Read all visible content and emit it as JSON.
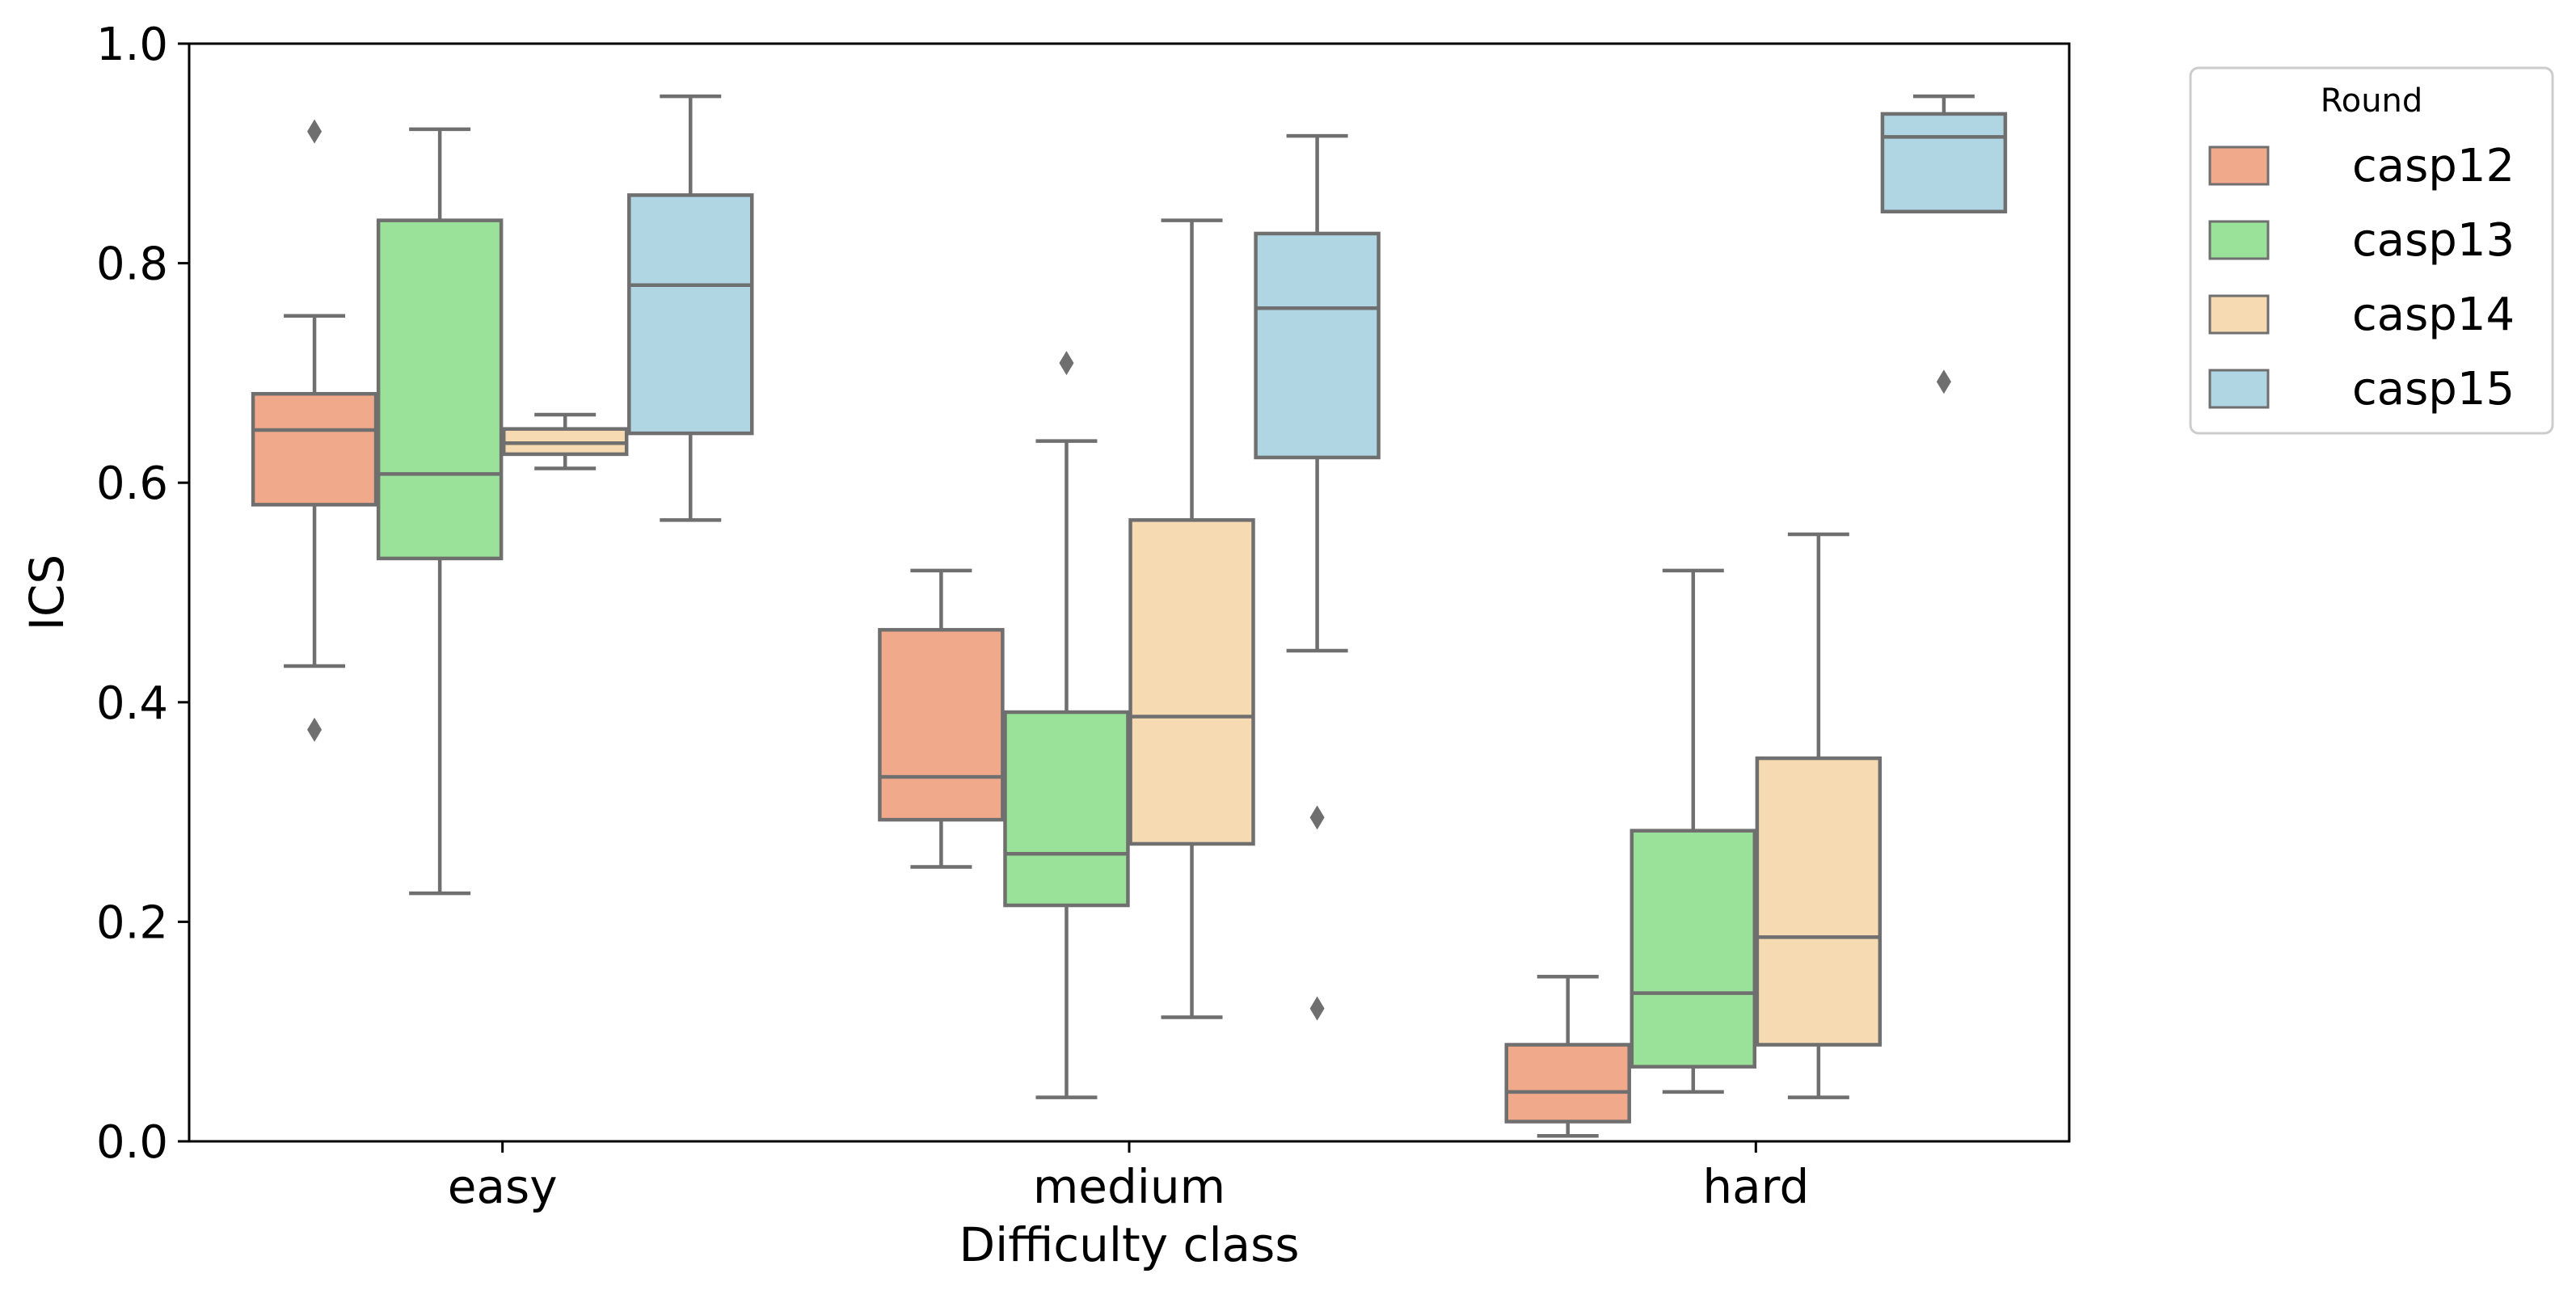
{
  "chart_data": {
    "type": "box",
    "xlabel": "Difficulty class",
    "ylabel": "ICS",
    "ylim": [
      0,
      1
    ],
    "yticks": [
      "0.0",
      "0.2",
      "0.4",
      "0.6",
      "0.8",
      "1.0"
    ],
    "categories": [
      "easy",
      "medium",
      "hard"
    ],
    "legend": {
      "title": "Round",
      "placement": "outside right, top"
    },
    "grid": false,
    "series": [
      {
        "name": "casp12",
        "color": "#F0A98A",
        "boxes": [
          {
            "whislo": 0.433,
            "q1": 0.58,
            "med": 0.648,
            "q3": 0.681,
            "whishi": 0.752,
            "fliers": [
              0.92,
              0.375
            ]
          },
          {
            "whislo": 0.25,
            "q1": 0.293,
            "med": 0.332,
            "q3": 0.466,
            "whishi": 0.52,
            "fliers": []
          },
          {
            "whislo": 0.005,
            "q1": 0.018,
            "med": 0.045,
            "q3": 0.088,
            "whishi": 0.15,
            "fliers": []
          }
        ]
      },
      {
        "name": "casp13",
        "color": "#9AE29A",
        "boxes": [
          {
            "whislo": 0.226,
            "q1": 0.531,
            "med": 0.608,
            "q3": 0.839,
            "whishi": 0.922,
            "fliers": []
          },
          {
            "whislo": 0.04,
            "q1": 0.215,
            "med": 0.262,
            "q3": 0.391,
            "whishi": 0.638,
            "fliers": [
              0.709
            ]
          },
          {
            "whislo": 0.045,
            "q1": 0.068,
            "med": 0.135,
            "q3": 0.283,
            "whishi": 0.52,
            "fliers": []
          }
        ]
      },
      {
        "name": "casp14",
        "color": "#F5DAB2",
        "boxes": [
          {
            "whislo": 0.613,
            "q1": 0.626,
            "med": 0.636,
            "q3": 0.649,
            "whishi": 0.662,
            "fliers": []
          },
          {
            "whislo": 0.113,
            "q1": 0.271,
            "med": 0.387,
            "q3": 0.566,
            "whishi": 0.839,
            "fliers": []
          },
          {
            "whislo": 0.04,
            "q1": 0.088,
            "med": 0.186,
            "q3": 0.349,
            "whishi": 0.553,
            "fliers": []
          }
        ]
      },
      {
        "name": "casp15",
        "color": "#AFD6E2",
        "boxes": [
          {
            "whislo": 0.566,
            "q1": 0.645,
            "med": 0.78,
            "q3": 0.862,
            "whishi": 0.952,
            "fliers": []
          },
          {
            "whislo": 0.447,
            "q1": 0.623,
            "med": 0.759,
            "q3": 0.827,
            "whishi": 0.916,
            "fliers": [
              0.295,
              0.121
            ]
          },
          {
            "whislo": 0.847,
            "q1": 0.847,
            "med": 0.915,
            "q3": 0.936,
            "whishi": 0.952,
            "fliers": [
              0.692
            ]
          }
        ]
      }
    ]
  }
}
